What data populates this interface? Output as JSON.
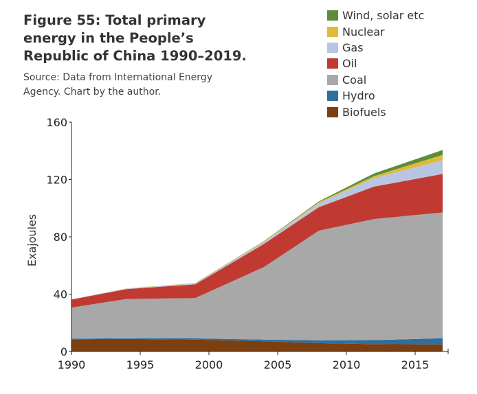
{
  "figure": {
    "title": "Figure 55: Total primary energy in the People’s Republic of China 1990–2019.",
    "source": "Source: Data from International Energy Agency. Chart by the author."
  },
  "chart_data": {
    "type": "area",
    "stacked": true,
    "title": "Figure 55: Total primary energy in the People’s Republic of China 1990–2019.",
    "xlabel": "",
    "ylabel": "Exajoules",
    "x": [
      1990,
      1994,
      1999,
      2004,
      2008,
      2012,
      2017
    ],
    "xlim": [
      1990,
      2017.4
    ],
    "ylim": [
      0,
      160
    ],
    "xticks": [
      "1990",
      "1995",
      "2000",
      "2005",
      "2010",
      "2015"
    ],
    "yticks": [
      "0",
      "40",
      "80",
      "120",
      "160"
    ],
    "grid": false,
    "legend_position": "top-right",
    "series": [
      {
        "name": "Biofuels",
        "color": "#7b3f10",
        "values": [
          8.5,
          8.7,
          8.3,
          7.1,
          5.8,
          5.1,
          4.9
        ]
      },
      {
        "name": "Hydro",
        "color": "#2e6f9e",
        "values": [
          0.4,
          0.5,
          0.8,
          1.2,
          2.0,
          2.8,
          4.3
        ]
      },
      {
        "name": "Coal",
        "color": "#a8a8a8",
        "values": [
          21.7,
          27.4,
          28.1,
          50.6,
          76.5,
          84.5,
          87.8
        ]
      },
      {
        "name": "Oil",
        "color": "#c13a32",
        "values": [
          5.6,
          6.9,
          9.6,
          16.1,
          16.4,
          22.6,
          26.9
        ]
      },
      {
        "name": "Gas",
        "color": "#b8c6e3",
        "values": [
          0.2,
          0.4,
          0.6,
          1.3,
          2.7,
          6.0,
          9.5
        ]
      },
      {
        "name": "Nuclear",
        "color": "#e0bb3a",
        "values": [
          0,
          0.1,
          0.2,
          0.5,
          0.8,
          1.3,
          3.8
        ]
      },
      {
        "name": "Wind, solar etc",
        "color": "#5e8c3a",
        "values": [
          0,
          0,
          0.1,
          0.2,
          0.5,
          1.9,
          3.4
        ]
      }
    ]
  }
}
